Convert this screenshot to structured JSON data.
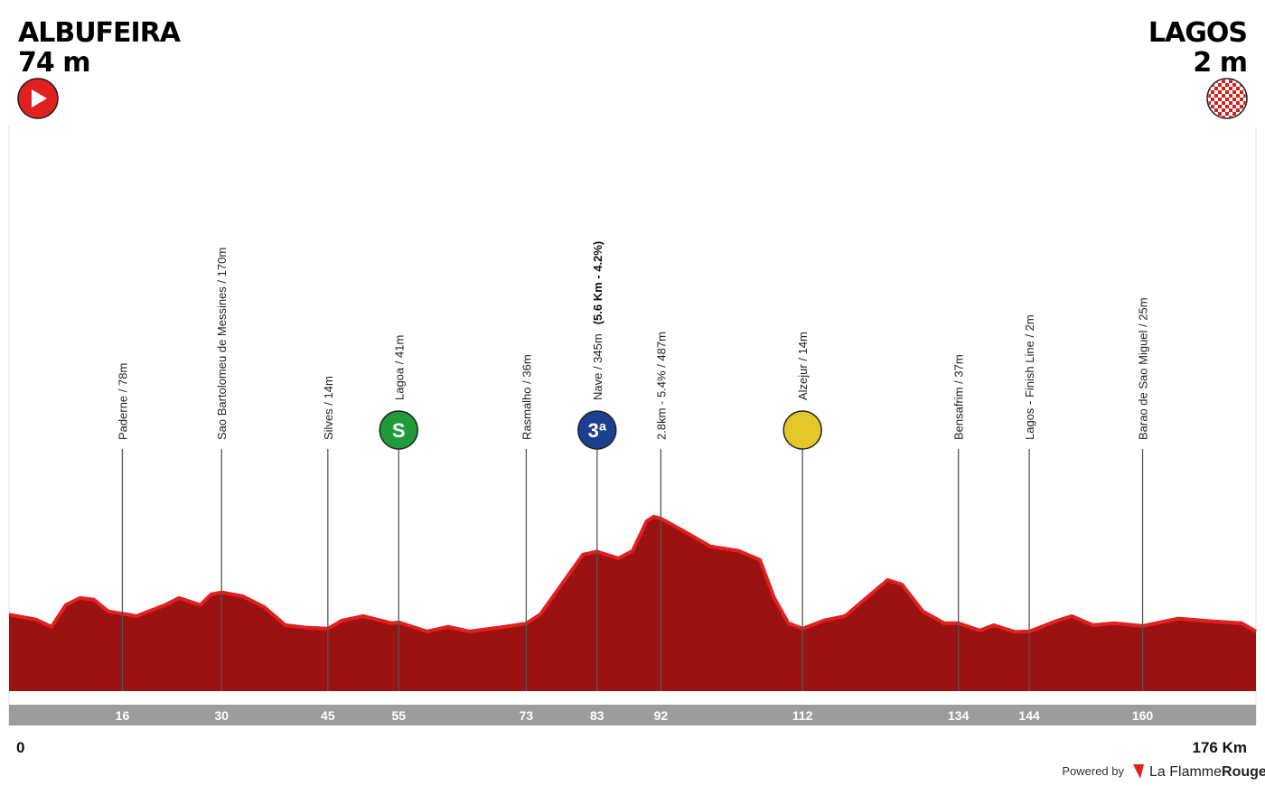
{
  "chart_data": {
    "type": "profile",
    "start": {
      "name": "ALBUFEIRA",
      "altitude": "74 m"
    },
    "finish": {
      "name": "LAGOS",
      "altitude": "2 m"
    },
    "xlim": [
      0,
      176
    ],
    "xticks": [
      0,
      {
        "value": 176,
        "label": "176 Km"
      }
    ],
    "ylim": [
      -262,
      2202
    ],
    "color": "#9a1212",
    "edge_color": "#e2201f",
    "x": [
      0,
      3.8,
      6,
      8,
      10,
      12,
      14,
      16,
      18,
      22,
      24,
      27,
      28.5,
      30,
      33,
      36,
      39,
      42,
      45,
      47,
      50,
      54,
      55,
      59,
      62,
      65,
      70,
      73,
      75,
      78,
      81,
      83,
      86,
      88,
      90,
      91,
      92,
      95,
      99,
      103,
      106,
      108,
      110,
      112,
      115,
      118,
      121,
      124,
      126,
      129,
      132,
      134,
      137,
      139,
      142,
      144,
      148,
      150,
      153,
      156,
      160,
      165,
      170,
      174,
      176
    ],
    "values": [
      74,
      53,
      22,
      115,
      146,
      138,
      88,
      78,
      68,
      115,
      146,
      115,
      161,
      170,
      153,
      107,
      29,
      18,
      14,
      49,
      68,
      37,
      41,
      2,
      22,
      2,
      22,
      36,
      76,
      204,
      332,
      345,
      316,
      348,
      476,
      495,
      487,
      437,
      367,
      348,
      309,
      146,
      37,
      14,
      49,
      68,
      146,
      223,
      204,
      88,
      37,
      37,
      6,
      29,
      0,
      2,
      49,
      68,
      29,
      37,
      25,
      57,
      45,
      37,
      2
    ],
    "markers": [
      {
        "km": 16,
        "label": "Paderne / 78m"
      },
      {
        "km": 30,
        "label": "Sao Bartolomeu de Messines / 170m"
      },
      {
        "km": 45,
        "label": "Silves / 14m"
      },
      {
        "km": 55,
        "label": "Lagoa / 41m",
        "icon": "S",
        "icon_color": "#1f9b3a"
      },
      {
        "km": 73,
        "label": "Rasmalho / 36m"
      },
      {
        "km": 83,
        "label": "Nave / 345m",
        "detail": "(5.6 Km - 4.2%)",
        "icon": "3ª",
        "icon_color": "#1d3f8f"
      },
      {
        "km": 92,
        "label": "2.8km - 5.4% / 487m"
      },
      {
        "km": 112,
        "label": "Alzejur / 14m",
        "icon": "",
        "icon_color": "#e3c72a"
      },
      {
        "km": 134,
        "label": "Bensafrim / 37m"
      },
      {
        "km": 144,
        "label": "Lagos - Finish Line / 2m"
      },
      {
        "km": 160,
        "label": "Barao de Sao Miguel / 25m"
      }
    ]
  },
  "footer": {
    "powered": "Powered by",
    "brand": "La Flamme",
    "brand_bold": "Rouge"
  }
}
